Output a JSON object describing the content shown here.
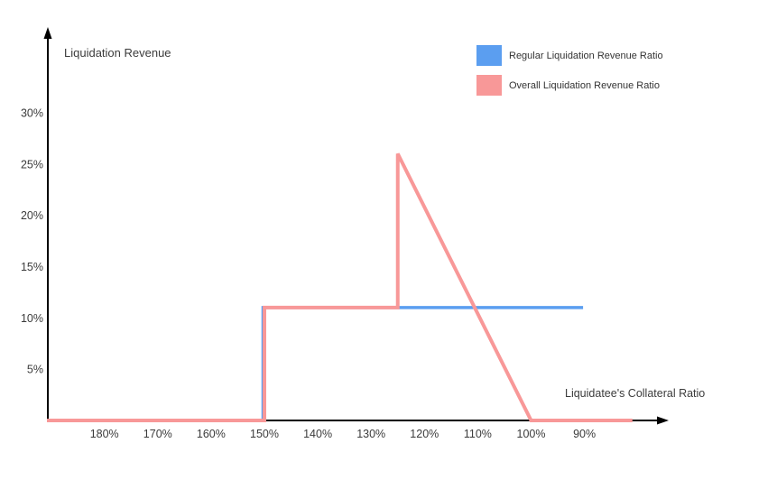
{
  "chart_data": {
    "type": "line",
    "title": "",
    "ylabel": "Liquidation Revenue",
    "xlabel": "Liquidatee's Collateral Ratio",
    "legend_position": "top-right",
    "axis_color": "#000000",
    "x_axis": {
      "unit": "%",
      "direction": "values decrease left-to-right",
      "ticks": [
        180,
        170,
        160,
        150,
        140,
        130,
        120,
        110,
        100,
        90
      ],
      "tick_labels": [
        "180%",
        "170%",
        "160%",
        "150%",
        "140%",
        "130%",
        "120%",
        "110%",
        "100%",
        "90%"
      ],
      "range_displayed": [
        191,
        81
      ]
    },
    "y_axis": {
      "unit": "%",
      "ticks": [
        5,
        10,
        15,
        20,
        25,
        30
      ],
      "tick_labels": [
        "5%",
        "10%",
        "15%",
        "20%",
        "25%",
        "30%"
      ],
      "range_displayed": [
        0,
        33
      ]
    },
    "series": [
      {
        "name": "Regular Liquidation Revenue Ratio",
        "color": "#5B9EF0",
        "points": [
          {
            "x": 191,
            "y": 0
          },
          {
            "x": 150,
            "y": 0
          },
          {
            "x": 150,
            "y": 11
          },
          {
            "x": 90,
            "y": 11
          }
        ]
      },
      {
        "name": "Overall Liquidation Revenue Ratio",
        "color": "#F89898",
        "points": [
          {
            "x": 191,
            "y": 0
          },
          {
            "x": 150,
            "y": 0
          },
          {
            "x": 150,
            "y": 11
          },
          {
            "x": 125,
            "y": 11
          },
          {
            "x": 125,
            "y": 26
          },
          {
            "x": 100,
            "y": 0
          },
          {
            "x": 81,
            "y": 0
          }
        ]
      }
    ]
  }
}
